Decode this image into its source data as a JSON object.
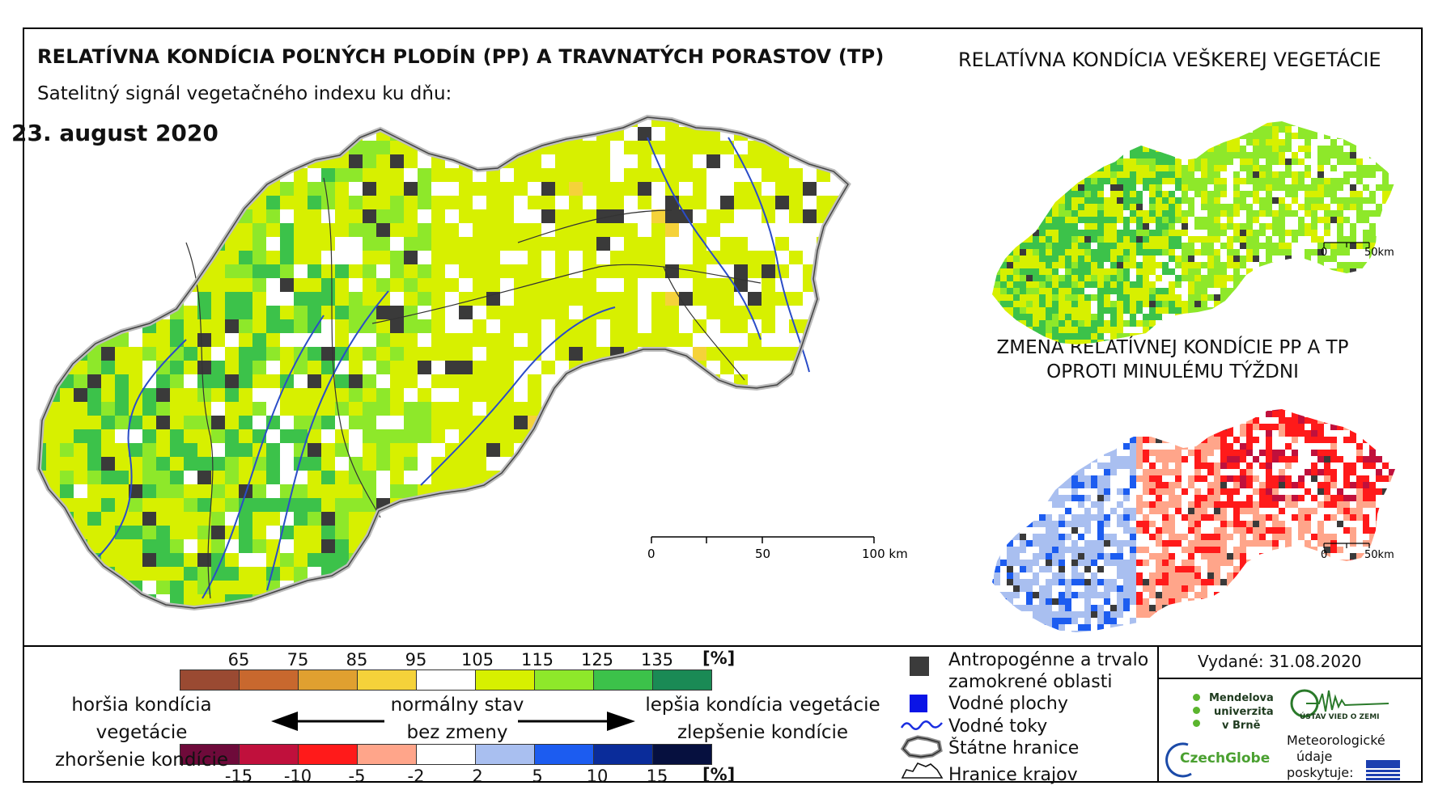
{
  "title": "RELATÍVNA KONDÍCIA POĽNÝCH PLODÍN (PP) A TRAVNATÝCH PORASTOV (TP)",
  "subtitle": "Satelitný signál vegetačného indexu ku dňu:",
  "date": "23. august 2020",
  "right_top_title": "RELATÍVNA KONDÍCIA VEŠKEREJ VEGETÁCIE",
  "change_title_line1": "ZMENA RELATÍVNEJ KONDÍCIE PP A TP",
  "change_title_line2": "OPROTI MINULÉMU TÝŽDNI",
  "main_scale": {
    "t0": "0",
    "t1": "50",
    "t2": "100 km"
  },
  "small_scale": {
    "t0": "0",
    "t1": "50km"
  },
  "condition_legend": {
    "ticks": [
      "65",
      "75",
      "85",
      "95",
      "105",
      "115",
      "125",
      "135"
    ],
    "unit": "[%]",
    "colors": [
      "#9a4a32",
      "#c8682e",
      "#e0a030",
      "#f5d23a",
      "#ffffff",
      "#d7f000",
      "#8ee82a",
      "#3cc24a",
      "#1a8a55"
    ]
  },
  "change_legend": {
    "ticks": [
      "-15",
      "-10",
      "-5",
      "-2",
      "2",
      "5",
      "10",
      "15"
    ],
    "unit": "[%]",
    "colors": [
      "#6e0a3a",
      "#c0103c",
      "#ff1a1a",
      "#ffa58a",
      "#ffffff",
      "#a9bff0",
      "#1c5cf0",
      "#0a2c9a",
      "#06103f"
    ]
  },
  "labels": {
    "worse_condition": "horšia kondícia vegetácie",
    "worsened": "zhoršenie kondície",
    "normal": "normálny stav",
    "no_change": "bez zmeny",
    "better_condition": "lepšia kondícia vegetácie",
    "improved": "zlepšenie kondície"
  },
  "map_legend": {
    "anthropogenic": "Antropogénne a trvalo",
    "anthropogenic2": "zamokrené oblasti",
    "water_bodies": "Vodné plochy",
    "water_streams": "Vodné toky",
    "state_border": "Štátne hranice",
    "region_border": "Hranice krajov"
  },
  "issued": "Vydané: 31.08.2020",
  "logos": {
    "mendel1": "Mendelova",
    "mendel2": "univerzita",
    "mendel3": "v Brně",
    "czechglobe": "CzechGlobe",
    "ustav": "ÚSTAV VIED O ZEMI",
    "meteo1": "Meteorologické",
    "meteo2": "údaje",
    "meteo3": "poskytuje:"
  }
}
